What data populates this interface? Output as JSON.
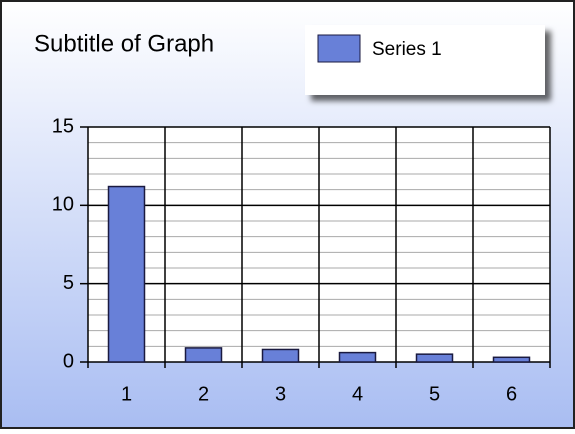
{
  "chart_data": {
    "type": "bar",
    "title": "Subtitle of Graph",
    "categories": [
      "1",
      "2",
      "3",
      "4",
      "5",
      "6"
    ],
    "series": [
      {
        "name": "Series 1",
        "color": "#6880d8",
        "values": [
          11.2,
          0.9,
          0.8,
          0.6,
          0.5,
          0.3
        ]
      }
    ],
    "ylim": [
      0,
      15
    ],
    "yticks": [
      0,
      5,
      10,
      15
    ],
    "minor_yticks": [
      1,
      2,
      3,
      4,
      6,
      7,
      8,
      9,
      11,
      12,
      13,
      14
    ],
    "grid": true,
    "legend": "top-right"
  }
}
